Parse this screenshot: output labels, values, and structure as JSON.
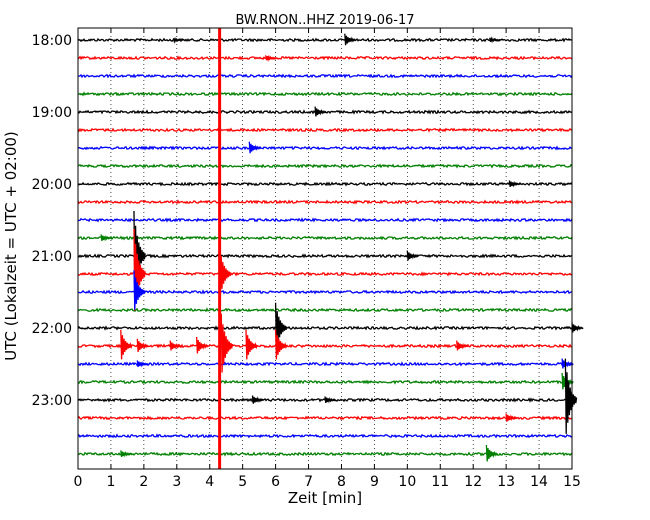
{
  "chart_data": {
    "type": "line",
    "title": "BW.RNON..HHZ 2019-06-17",
    "xlabel": "Zeit  [min]",
    "ylabel": "UTC (Lokalzeit = UTC + 02:00)",
    "xlim": [
      0,
      15
    ],
    "x_ticks": [
      "0",
      "1",
      "2",
      "3",
      "4",
      "5",
      "6",
      "7",
      "8",
      "9",
      "10",
      "11",
      "12",
      "13",
      "14",
      "15"
    ],
    "y_tick_labels": [
      "18:00",
      "19:00",
      "20:00",
      "21:00",
      "22:00",
      "23:00"
    ],
    "grid": "vertical dotted",
    "trace_interval_min": 15,
    "colors": [
      "#000000",
      "#ff0000",
      "#0000ff",
      "#008000"
    ],
    "series": [
      {
        "start": "18:00",
        "color": "#000000"
      },
      {
        "start": "18:15",
        "color": "#ff0000"
      },
      {
        "start": "18:30",
        "color": "#0000ff"
      },
      {
        "start": "18:45",
        "color": "#008000"
      },
      {
        "start": "19:00",
        "color": "#000000"
      },
      {
        "start": "19:15",
        "color": "#ff0000"
      },
      {
        "start": "19:30",
        "color": "#0000ff"
      },
      {
        "start": "19:45",
        "color": "#008000"
      },
      {
        "start": "20:00",
        "color": "#000000"
      },
      {
        "start": "20:15",
        "color": "#ff0000"
      },
      {
        "start": "20:30",
        "color": "#0000ff"
      },
      {
        "start": "20:45",
        "color": "#008000"
      },
      {
        "start": "21:00",
        "color": "#000000"
      },
      {
        "start": "21:15",
        "color": "#ff0000"
      },
      {
        "start": "21:30",
        "color": "#0000ff"
      },
      {
        "start": "21:45",
        "color": "#008000"
      },
      {
        "start": "22:00",
        "color": "#000000"
      },
      {
        "start": "22:15",
        "color": "#ff0000"
      },
      {
        "start": "22:30",
        "color": "#0000ff"
      },
      {
        "start": "22:45",
        "color": "#008000"
      },
      {
        "start": "23:00",
        "color": "#000000"
      },
      {
        "start": "23:15",
        "color": "#ff0000"
      },
      {
        "start": "23:30",
        "color": "#0000ff"
      },
      {
        "start": "23:45",
        "color": "#008000"
      }
    ],
    "events": [
      {
        "trace": 0,
        "x": 2.9,
        "amp": 0.1
      },
      {
        "trace": 0,
        "x": 8.1,
        "amp": 0.35
      },
      {
        "trace": 0,
        "x": 12.5,
        "amp": 0.12
      },
      {
        "trace": 1,
        "x": 5.7,
        "amp": 0.15
      },
      {
        "trace": 4,
        "x": 7.2,
        "amp": 0.3
      },
      {
        "trace": 6,
        "x": 5.2,
        "amp": 0.35
      },
      {
        "trace": 8,
        "x": 13.1,
        "amp": 0.2
      },
      {
        "trace": 11,
        "x": 0.7,
        "amp": 0.2
      },
      {
        "trace": 12,
        "x": 1.7,
        "amp": 2.5
      },
      {
        "trace": 12,
        "x": 10.0,
        "amp": 0.3
      },
      {
        "trace": 13,
        "x": 1.7,
        "amp": 2.5
      },
      {
        "trace": 13,
        "x": 4.3,
        "amp": 1.5
      },
      {
        "trace": 14,
        "x": 1.7,
        "amp": 1.2
      },
      {
        "trace": 16,
        "x": 6.0,
        "amp": 1.4
      },
      {
        "trace": 16,
        "x": 15.0,
        "amp": 0.3
      },
      {
        "trace": 17,
        "x": 1.3,
        "amp": 0.9
      },
      {
        "trace": 17,
        "x": 1.8,
        "amp": 0.4
      },
      {
        "trace": 17,
        "x": 2.8,
        "amp": 0.3
      },
      {
        "trace": 17,
        "x": 3.6,
        "amp": 0.5
      },
      {
        "trace": 17,
        "x": 4.35,
        "amp": 1.8
      },
      {
        "trace": 17,
        "x": 5.1,
        "amp": 0.9
      },
      {
        "trace": 17,
        "x": 6.0,
        "amp": 0.9
      },
      {
        "trace": 17,
        "x": 11.5,
        "amp": 0.3
      },
      {
        "trace": 18,
        "x": 1.8,
        "amp": 0.2
      },
      {
        "trace": 18,
        "x": 14.7,
        "amp": 0.3
      },
      {
        "trace": 19,
        "x": 14.7,
        "amp": 0.5
      },
      {
        "trace": 20,
        "x": 5.3,
        "amp": 0.25
      },
      {
        "trace": 20,
        "x": 7.5,
        "amp": 0.2
      },
      {
        "trace": 20,
        "x": 14.8,
        "amp": 2.3
      },
      {
        "trace": 21,
        "x": 13.0,
        "amp": 0.25
      },
      {
        "trace": 23,
        "x": 1.3,
        "amp": 0.2
      },
      {
        "trace": 23,
        "x": 12.4,
        "amp": 0.5
      }
    ],
    "vertical_line": {
      "x": 4.3,
      "color": "#ff0000",
      "from_trace": 0,
      "to_trace": 23
    }
  }
}
